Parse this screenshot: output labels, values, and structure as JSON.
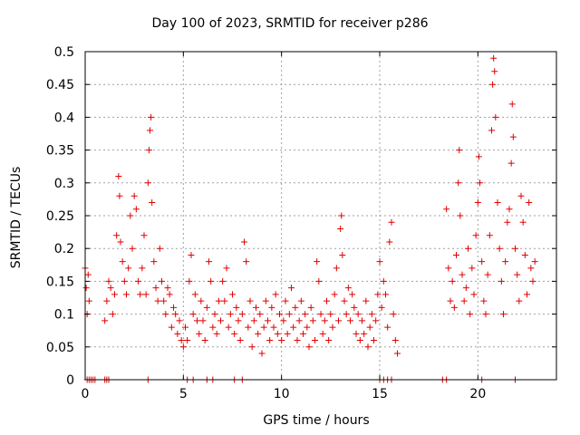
{
  "chart_data": {
    "type": "scatter",
    "title": "Day 100 of 2023, SRMTID for receiver p286",
    "xlabel": "GPS time / hours",
    "ylabel": "SRMTID / TECUs",
    "xlim": [
      0,
      24
    ],
    "ylim": [
      0,
      0.5
    ],
    "xticks": [
      0,
      5,
      10,
      15,
      20
    ],
    "yticks": [
      0,
      0.05,
      0.1,
      0.15,
      0.2,
      0.25,
      0.3,
      0.35,
      0.4,
      0.45,
      0.5
    ],
    "grid": true,
    "marker": "+",
    "color": "#e00000",
    "series": [
      {
        "name": "SRMTID",
        "points": [
          [
            0.0,
            0.17
          ],
          [
            0.05,
            0.14
          ],
          [
            0.1,
            0.1
          ],
          [
            0.15,
            0.16
          ],
          [
            0.2,
            0.12
          ],
          [
            1.0,
            0.09
          ],
          [
            1.1,
            0.12
          ],
          [
            1.2,
            0.15
          ],
          [
            1.3,
            0.14
          ],
          [
            1.4,
            0.1
          ],
          [
            1.5,
            0.13
          ],
          [
            1.6,
            0.22
          ],
          [
            1.7,
            0.31
          ],
          [
            1.75,
            0.28
          ],
          [
            1.8,
            0.21
          ],
          [
            1.9,
            0.18
          ],
          [
            2.0,
            0.15
          ],
          [
            2.1,
            0.13
          ],
          [
            2.2,
            0.17
          ],
          [
            2.3,
            0.25
          ],
          [
            2.4,
            0.2
          ],
          [
            2.5,
            0.28
          ],
          [
            2.6,
            0.26
          ],
          [
            2.7,
            0.15
          ],
          [
            2.8,
            0.13
          ],
          [
            2.9,
            0.17
          ],
          [
            3.0,
            0.22
          ],
          [
            3.1,
            0.13
          ],
          [
            3.2,
            0.3
          ],
          [
            3.25,
            0.35
          ],
          [
            3.3,
            0.38
          ],
          [
            3.35,
            0.4
          ],
          [
            3.4,
            0.27
          ],
          [
            3.5,
            0.18
          ],
          [
            3.6,
            0.14
          ],
          [
            3.7,
            0.12
          ],
          [
            3.8,
            0.2
          ],
          [
            3.9,
            0.15
          ],
          [
            4.0,
            0.12
          ],
          [
            4.1,
            0.1
          ],
          [
            4.2,
            0.14
          ],
          [
            4.3,
            0.13
          ],
          [
            4.4,
            0.08
          ],
          [
            4.5,
            0.11
          ],
          [
            4.6,
            0.1
          ],
          [
            4.7,
            0.07
          ],
          [
            4.8,
            0.09
          ],
          [
            4.9,
            0.06
          ],
          [
            5.0,
            0.05
          ],
          [
            5.1,
            0.08
          ],
          [
            5.2,
            0.06
          ],
          [
            5.3,
            0.15
          ],
          [
            5.4,
            0.19
          ],
          [
            5.5,
            0.1
          ],
          [
            5.6,
            0.13
          ],
          [
            5.7,
            0.09
          ],
          [
            5.8,
            0.07
          ],
          [
            5.9,
            0.12
          ],
          [
            6.0,
            0.09
          ],
          [
            6.1,
            0.06
          ],
          [
            6.2,
            0.11
          ],
          [
            6.3,
            0.18
          ],
          [
            6.4,
            0.15
          ],
          [
            6.5,
            0.08
          ],
          [
            6.6,
            0.1
          ],
          [
            6.7,
            0.07
          ],
          [
            6.8,
            0.12
          ],
          [
            6.9,
            0.09
          ],
          [
            7.0,
            0.15
          ],
          [
            7.1,
            0.12
          ],
          [
            7.2,
            0.17
          ],
          [
            7.3,
            0.08
          ],
          [
            7.4,
            0.1
          ],
          [
            7.5,
            0.13
          ],
          [
            7.6,
            0.07
          ],
          [
            7.7,
            0.11
          ],
          [
            7.8,
            0.09
          ],
          [
            7.9,
            0.06
          ],
          [
            8.0,
            0.1
          ],
          [
            8.1,
            0.21
          ],
          [
            8.2,
            0.18
          ],
          [
            8.3,
            0.08
          ],
          [
            8.4,
            0.12
          ],
          [
            8.5,
            0.05
          ],
          [
            8.6,
            0.09
          ],
          [
            8.7,
            0.11
          ],
          [
            8.8,
            0.07
          ],
          [
            8.9,
            0.1
          ],
          [
            9.0,
            0.04
          ],
          [
            9.1,
            0.08
          ],
          [
            9.2,
            0.12
          ],
          [
            9.3,
            0.09
          ],
          [
            9.4,
            0.06
          ],
          [
            9.5,
            0.11
          ],
          [
            9.6,
            0.08
          ],
          [
            9.7,
            0.13
          ],
          [
            9.8,
            0.07
          ],
          [
            9.9,
            0.1
          ],
          [
            10.0,
            0.06
          ],
          [
            10.1,
            0.09
          ],
          [
            10.2,
            0.12
          ],
          [
            10.3,
            0.07
          ],
          [
            10.4,
            0.1
          ],
          [
            10.5,
            0.14
          ],
          [
            10.6,
            0.08
          ],
          [
            10.7,
            0.11
          ],
          [
            10.8,
            0.06
          ],
          [
            10.9,
            0.09
          ],
          [
            11.0,
            0.12
          ],
          [
            11.1,
            0.07
          ],
          [
            11.2,
            0.1
          ],
          [
            11.3,
            0.08
          ],
          [
            11.4,
            0.05
          ],
          [
            11.5,
            0.11
          ],
          [
            11.6,
            0.09
          ],
          [
            11.7,
            0.06
          ],
          [
            11.8,
            0.18
          ],
          [
            11.9,
            0.15
          ],
          [
            12.0,
            0.1
          ],
          [
            12.1,
            0.07
          ],
          [
            12.2,
            0.09
          ],
          [
            12.3,
            0.12
          ],
          [
            12.4,
            0.06
          ],
          [
            12.5,
            0.1
          ],
          [
            12.6,
            0.08
          ],
          [
            12.7,
            0.13
          ],
          [
            12.8,
            0.17
          ],
          [
            12.9,
            0.09
          ],
          [
            13.0,
            0.23
          ],
          [
            13.05,
            0.25
          ],
          [
            13.1,
            0.19
          ],
          [
            13.2,
            0.12
          ],
          [
            13.3,
            0.1
          ],
          [
            13.4,
            0.14
          ],
          [
            13.5,
            0.09
          ],
          [
            13.6,
            0.13
          ],
          [
            13.7,
            0.11
          ],
          [
            13.8,
            0.07
          ],
          [
            13.9,
            0.1
          ],
          [
            14.0,
            0.06
          ],
          [
            14.1,
            0.09
          ],
          [
            14.2,
            0.07
          ],
          [
            14.3,
            0.12
          ],
          [
            14.4,
            0.05
          ],
          [
            14.5,
            0.08
          ],
          [
            14.6,
            0.1
          ],
          [
            14.7,
            0.06
          ],
          [
            14.8,
            0.09
          ],
          [
            14.9,
            0.13
          ],
          [
            15.0,
            0.18
          ],
          [
            15.1,
            0.11
          ],
          [
            15.2,
            0.15
          ],
          [
            15.3,
            0.13
          ],
          [
            15.4,
            0.08
          ],
          [
            15.5,
            0.21
          ],
          [
            15.6,
            0.24
          ],
          [
            15.7,
            0.1
          ],
          [
            15.8,
            0.06
          ],
          [
            15.9,
            0.04
          ],
          [
            18.4,
            0.26
          ],
          [
            18.5,
            0.17
          ],
          [
            18.6,
            0.12
          ],
          [
            18.7,
            0.15
          ],
          [
            18.8,
            0.11
          ],
          [
            18.9,
            0.19
          ],
          [
            19.0,
            0.3
          ],
          [
            19.05,
            0.35
          ],
          [
            19.1,
            0.25
          ],
          [
            19.2,
            0.16
          ],
          [
            19.3,
            0.12
          ],
          [
            19.4,
            0.14
          ],
          [
            19.5,
            0.2
          ],
          [
            19.6,
            0.1
          ],
          [
            19.7,
            0.17
          ],
          [
            19.8,
            0.13
          ],
          [
            19.9,
            0.22
          ],
          [
            20.0,
            0.27
          ],
          [
            20.05,
            0.34
          ],
          [
            20.1,
            0.3
          ],
          [
            20.2,
            0.18
          ],
          [
            20.3,
            0.12
          ],
          [
            20.4,
            0.1
          ],
          [
            20.5,
            0.16
          ],
          [
            20.6,
            0.22
          ],
          [
            20.7,
            0.38
          ],
          [
            20.75,
            0.45
          ],
          [
            20.8,
            0.49
          ],
          [
            20.85,
            0.47
          ],
          [
            20.9,
            0.4
          ],
          [
            21.0,
            0.27
          ],
          [
            21.1,
            0.2
          ],
          [
            21.2,
            0.15
          ],
          [
            21.3,
            0.1
          ],
          [
            21.4,
            0.18
          ],
          [
            21.5,
            0.24
          ],
          [
            21.6,
            0.26
          ],
          [
            21.7,
            0.33
          ],
          [
            21.75,
            0.42
          ],
          [
            21.8,
            0.37
          ],
          [
            21.9,
            0.2
          ],
          [
            22.0,
            0.16
          ],
          [
            22.1,
            0.12
          ],
          [
            22.2,
            0.28
          ],
          [
            22.3,
            0.24
          ],
          [
            22.4,
            0.19
          ],
          [
            22.5,
            0.13
          ],
          [
            22.6,
            0.27
          ],
          [
            22.7,
            0.17
          ],
          [
            22.8,
            0.15
          ],
          [
            22.9,
            0.18
          ],
          [
            0.1,
            0.0
          ],
          [
            0.2,
            0.0
          ],
          [
            0.3,
            0.0
          ],
          [
            0.4,
            0.0
          ],
          [
            0.5,
            0.0
          ],
          [
            1.0,
            0.0
          ],
          [
            1.1,
            0.0
          ],
          [
            1.2,
            0.0
          ],
          [
            3.2,
            0.0
          ],
          [
            5.2,
            0.0
          ],
          [
            5.5,
            0.0
          ],
          [
            6.2,
            0.0
          ],
          [
            6.5,
            0.0
          ],
          [
            7.6,
            0.0
          ],
          [
            8.0,
            0.0
          ],
          [
            15.0,
            0.0
          ],
          [
            15.2,
            0.0
          ],
          [
            15.4,
            0.0
          ],
          [
            15.6,
            0.0
          ],
          [
            18.2,
            0.0
          ],
          [
            18.4,
            0.0
          ],
          [
            20.2,
            0.0
          ],
          [
            21.9,
            0.0
          ]
        ]
      }
    ]
  }
}
